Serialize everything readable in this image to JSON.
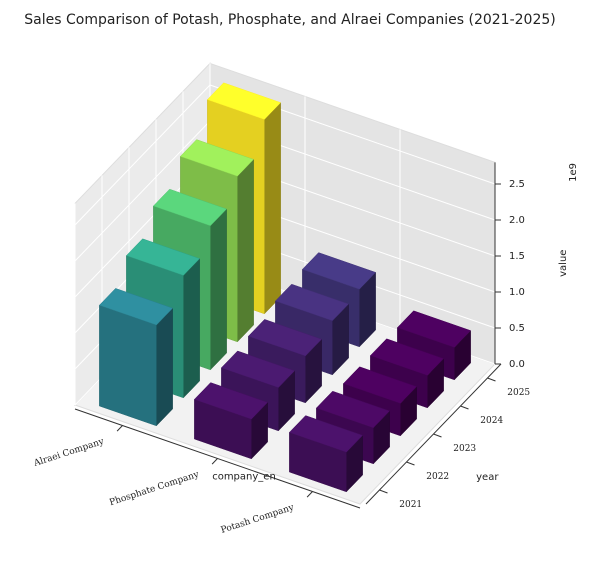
{
  "chart_data": {
    "type": "bar3d",
    "title": "Sales Comparison of Potash, Phosphate, and Alraei Companies (2021-2025)",
    "x_label": "company_en",
    "y_label": "year",
    "z_label": "value",
    "z_offset_label": "1e9",
    "x_categories": [
      "Alraei Company",
      "Phosphate Company",
      "Potash Company"
    ],
    "y_categories": [
      "2021",
      "2022",
      "2023",
      "2024",
      "2025"
    ],
    "values": [
      [
        1.4,
        1.7,
        2.0,
        2.3,
        2.7
      ],
      [
        0.55,
        0.6,
        0.65,
        0.75,
        0.8
      ],
      [
        0.55,
        0.5,
        0.45,
        0.45,
        0.45
      ]
    ],
    "zlim": [
      0,
      2.8
    ],
    "zticks": [
      {
        "value": 0,
        "label": "0.0"
      },
      {
        "value": 0.5,
        "label": "0.5"
      },
      {
        "value": 1,
        "label": "1.0"
      },
      {
        "value": 1.5,
        "label": "1.5"
      },
      {
        "value": 2,
        "label": "2.0"
      },
      {
        "value": 2.5,
        "label": "2.5"
      }
    ],
    "colormap": "viridis",
    "grid": true
  }
}
